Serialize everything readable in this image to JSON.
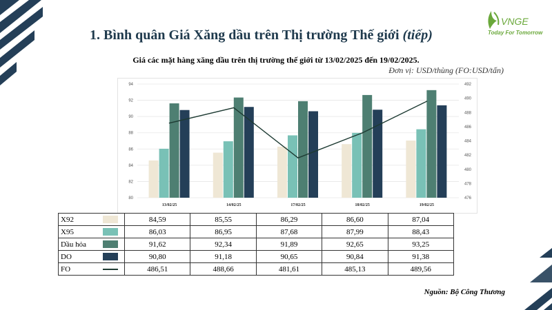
{
  "header": {
    "title": "1. Bình quân Giá Xăng dầu trên Thị trường Thế giới",
    "title_suffix": "(tiếp)",
    "subtitle": "Giá các mặt hàng xăng dầu trên thị trường thế giới từ 13/02/2025 đến 19/02/2025.",
    "unit": "Đơn vị: USD/thùng (FO:USD/tấn)"
  },
  "logo": {
    "name": "VNGE",
    "tagline": "Today For Tomorrow"
  },
  "colors": {
    "X92": "#efe7d5",
    "X95": "#79c1b6",
    "Dau_hoa": "#4e7f72",
    "DO": "#243f58",
    "FO": "#1e3b33",
    "deco": "#243f58"
  },
  "chart_data": {
    "type": "bar",
    "categories": [
      "13/02/25",
      "14/02/25",
      "17/02/25",
      "18/02/25",
      "19/02/25"
    ],
    "series": [
      {
        "key": "X92",
        "name": "X92",
        "type": "bar",
        "axis": "left",
        "values": [
          84.59,
          85.55,
          86.29,
          86.6,
          87.04
        ],
        "display": [
          "84,59",
          "85,55",
          "86,29",
          "86,60",
          "87,04"
        ]
      },
      {
        "key": "X95",
        "name": "X95",
        "type": "bar",
        "axis": "left",
        "values": [
          86.03,
          86.95,
          87.68,
          87.99,
          88.43
        ],
        "display": [
          "86,03",
          "86,95",
          "87,68",
          "87,99",
          "88,43"
        ]
      },
      {
        "key": "Dau_hoa",
        "name": "Dầu hỏa",
        "type": "bar",
        "axis": "left",
        "values": [
          91.62,
          92.34,
          91.89,
          92.65,
          93.25
        ],
        "display": [
          "91,62",
          "92,34",
          "91,89",
          "92,65",
          "93,25"
        ]
      },
      {
        "key": "DO",
        "name": "DO",
        "type": "bar",
        "axis": "left",
        "values": [
          90.8,
          91.18,
          90.65,
          90.84,
          91.38
        ],
        "display": [
          "90,80",
          "91,18",
          "90,65",
          "90,84",
          "91,38"
        ]
      },
      {
        "key": "FO",
        "name": "FO",
        "type": "line",
        "axis": "right",
        "values": [
          486.51,
          488.66,
          481.61,
          485.13,
          489.56
        ],
        "display": [
          "486,51",
          "488,66",
          "481,61",
          "485,13",
          "489,56"
        ]
      }
    ],
    "left_axis": {
      "min": 80,
      "max": 94,
      "step": 2,
      "ticks": [
        "80",
        "82",
        "84",
        "86",
        "88",
        "90",
        "92",
        "94"
      ]
    },
    "right_axis": {
      "min": 476,
      "max": 492,
      "step": 2,
      "ticks": [
        "476",
        "478",
        "480",
        "482",
        "484",
        "486",
        "488",
        "490",
        "492"
      ]
    },
    "grid": true
  },
  "source": "Nguồn: Bộ Công Thương"
}
